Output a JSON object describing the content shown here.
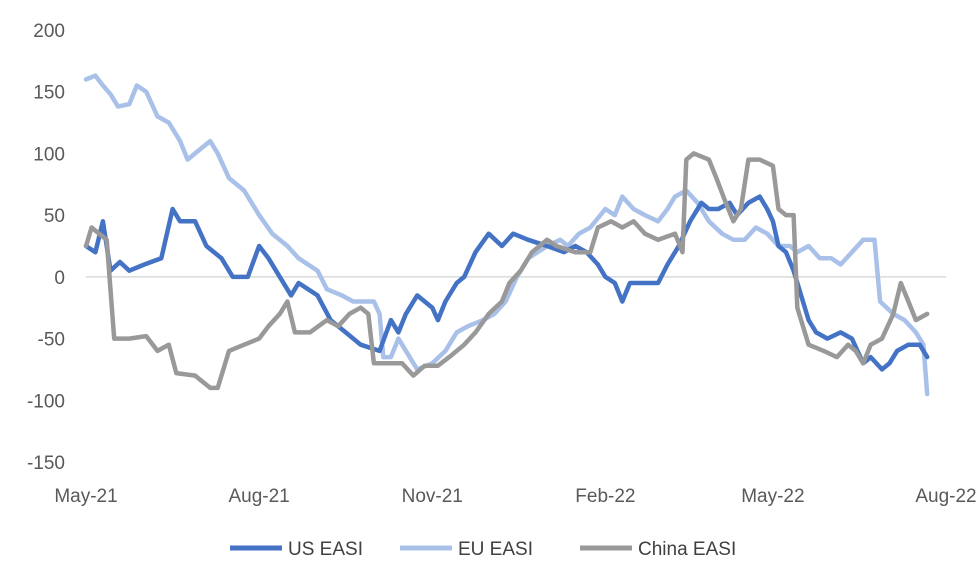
{
  "chart_data": {
    "type": "line",
    "title": "",
    "xlabel": "",
    "ylabel": "",
    "ylim": [
      -150,
      200
    ],
    "y_ticks": [
      200,
      150,
      100,
      50,
      0,
      -50,
      -100,
      -150
    ],
    "y_tick_labels": [
      "200",
      "150",
      "100",
      "50",
      "0",
      "-50",
      "-100",
      "-150"
    ],
    "x_ticks": [
      "2021-05-01",
      "2021-08-01",
      "2021-11-01",
      "2022-02-01",
      "2022-05-01",
      "2022-08-01"
    ],
    "x_tick_labels": [
      "May-21",
      "Aug-21",
      "Nov-21",
      "Feb-22",
      "May-22",
      "Aug-22"
    ],
    "xlim": [
      "2021-05-01",
      "2022-08-01"
    ],
    "grid": false,
    "legend_position": "bottom",
    "series": [
      {
        "name": "US EASI",
        "color": "#4472C4",
        "points": [
          [
            "2021-05-01",
            25
          ],
          [
            "2021-05-06",
            20
          ],
          [
            "2021-05-10",
            45
          ],
          [
            "2021-05-14",
            5
          ],
          [
            "2021-05-19",
            12
          ],
          [
            "2021-05-24",
            5
          ],
          [
            "2021-06-01",
            10
          ],
          [
            "2021-06-10",
            15
          ],
          [
            "2021-06-16",
            55
          ],
          [
            "2021-06-20",
            45
          ],
          [
            "2021-06-28",
            45
          ],
          [
            "2021-07-04",
            25
          ],
          [
            "2021-07-12",
            15
          ],
          [
            "2021-07-18",
            0
          ],
          [
            "2021-07-26",
            0
          ],
          [
            "2021-08-01",
            25
          ],
          [
            "2021-08-06",
            15
          ],
          [
            "2021-08-12",
            0
          ],
          [
            "2021-08-18",
            -15
          ],
          [
            "2021-08-22",
            -5
          ],
          [
            "2021-09-01",
            -15
          ],
          [
            "2021-09-08",
            -35
          ],
          [
            "2021-09-16",
            -45
          ],
          [
            "2021-09-24",
            -55
          ],
          [
            "2021-10-04",
            -60
          ],
          [
            "2021-10-10",
            -35
          ],
          [
            "2021-10-14",
            -45
          ],
          [
            "2021-10-18",
            -30
          ],
          [
            "2021-10-24",
            -15
          ],
          [
            "2021-10-28",
            -20
          ],
          [
            "2021-11-01",
            -25
          ],
          [
            "2021-11-04",
            -35
          ],
          [
            "2021-11-08",
            -20
          ],
          [
            "2021-11-14",
            -5
          ],
          [
            "2021-11-18",
            0
          ],
          [
            "2021-11-24",
            20
          ],
          [
            "2021-12-01",
            35
          ],
          [
            "2021-12-08",
            25
          ],
          [
            "2021-12-14",
            35
          ],
          [
            "2021-12-22",
            30
          ],
          [
            "2022-01-01",
            25
          ],
          [
            "2022-01-10",
            20
          ],
          [
            "2022-01-16",
            25
          ],
          [
            "2022-01-22",
            20
          ],
          [
            "2022-01-28",
            10
          ],
          [
            "2022-02-01",
            0
          ],
          [
            "2022-02-06",
            -5
          ],
          [
            "2022-02-10",
            -20
          ],
          [
            "2022-02-14",
            -5
          ],
          [
            "2022-02-22",
            -5
          ],
          [
            "2022-03-01",
            -5
          ],
          [
            "2022-03-06",
            10
          ],
          [
            "2022-03-12",
            25
          ],
          [
            "2022-03-18",
            45
          ],
          [
            "2022-03-24",
            60
          ],
          [
            "2022-03-28",
            55
          ],
          [
            "2022-04-02",
            55
          ],
          [
            "2022-04-08",
            60
          ],
          [
            "2022-04-12",
            50
          ],
          [
            "2022-04-18",
            60
          ],
          [
            "2022-04-24",
            65
          ],
          [
            "2022-04-28",
            55
          ],
          [
            "2022-05-01",
            45
          ],
          [
            "2022-05-04",
            25
          ],
          [
            "2022-05-08",
            20
          ],
          [
            "2022-05-12",
            5
          ],
          [
            "2022-05-16",
            -15
          ],
          [
            "2022-05-20",
            -35
          ],
          [
            "2022-05-24",
            -45
          ],
          [
            "2022-05-30",
            -50
          ],
          [
            "2022-06-06",
            -45
          ],
          [
            "2022-06-12",
            -50
          ],
          [
            "2022-06-18",
            -70
          ],
          [
            "2022-06-22",
            -65
          ],
          [
            "2022-06-28",
            -75
          ],
          [
            "2022-07-02",
            -70
          ],
          [
            "2022-07-06",
            -60
          ],
          [
            "2022-07-12",
            -55
          ],
          [
            "2022-07-18",
            -55
          ],
          [
            "2022-07-22",
            -65
          ]
        ]
      },
      {
        "name": "EU EASI",
        "color": "#A9C1E8",
        "points": [
          [
            "2021-05-01",
            160
          ],
          [
            "2021-05-06",
            163
          ],
          [
            "2021-05-10",
            155
          ],
          [
            "2021-05-14",
            148
          ],
          [
            "2021-05-18",
            138
          ],
          [
            "2021-05-24",
            140
          ],
          [
            "2021-05-28",
            155
          ],
          [
            "2021-06-02",
            150
          ],
          [
            "2021-06-08",
            130
          ],
          [
            "2021-06-14",
            125
          ],
          [
            "2021-06-20",
            110
          ],
          [
            "2021-06-24",
            95
          ],
          [
            "2021-06-28",
            100
          ],
          [
            "2021-07-06",
            110
          ],
          [
            "2021-07-10",
            100
          ],
          [
            "2021-07-16",
            80
          ],
          [
            "2021-07-24",
            70
          ],
          [
            "2021-08-01",
            50
          ],
          [
            "2021-08-08",
            35
          ],
          [
            "2021-08-16",
            25
          ],
          [
            "2021-08-22",
            15
          ],
          [
            "2021-09-01",
            5
          ],
          [
            "2021-09-06",
            -10
          ],
          [
            "2021-09-14",
            -15
          ],
          [
            "2021-09-20",
            -20
          ],
          [
            "2021-10-01",
            -20
          ],
          [
            "2021-10-04",
            -30
          ],
          [
            "2021-10-06",
            -65
          ],
          [
            "2021-10-10",
            -65
          ],
          [
            "2021-10-14",
            -50
          ],
          [
            "2021-10-18",
            -60
          ],
          [
            "2021-10-24",
            -75
          ],
          [
            "2021-11-01",
            -70
          ],
          [
            "2021-11-08",
            -60
          ],
          [
            "2021-11-14",
            -45
          ],
          [
            "2021-11-20",
            -40
          ],
          [
            "2021-11-28",
            -35
          ],
          [
            "2021-12-04",
            -30
          ],
          [
            "2021-12-10",
            -20
          ],
          [
            "2021-12-16",
            0
          ],
          [
            "2021-12-22",
            15
          ],
          [
            "2022-01-01",
            25
          ],
          [
            "2022-01-08",
            30
          ],
          [
            "2022-01-12",
            25
          ],
          [
            "2022-01-18",
            35
          ],
          [
            "2022-01-24",
            40
          ],
          [
            "2022-02-01",
            55
          ],
          [
            "2022-02-06",
            50
          ],
          [
            "2022-02-10",
            65
          ],
          [
            "2022-02-16",
            55
          ],
          [
            "2022-02-22",
            50
          ],
          [
            "2022-03-01",
            45
          ],
          [
            "2022-03-06",
            55
          ],
          [
            "2022-03-10",
            65
          ],
          [
            "2022-03-16",
            70
          ],
          [
            "2022-03-22",
            60
          ],
          [
            "2022-03-28",
            45
          ],
          [
            "2022-04-04",
            35
          ],
          [
            "2022-04-10",
            30
          ],
          [
            "2022-04-16",
            30
          ],
          [
            "2022-04-22",
            40
          ],
          [
            "2022-04-28",
            35
          ],
          [
            "2022-05-04",
            25
          ],
          [
            "2022-05-10",
            25
          ],
          [
            "2022-05-14",
            20
          ],
          [
            "2022-05-20",
            25
          ],
          [
            "2022-05-26",
            15
          ],
          [
            "2022-06-01",
            15
          ],
          [
            "2022-06-06",
            10
          ],
          [
            "2022-06-12",
            20
          ],
          [
            "2022-06-18",
            30
          ],
          [
            "2022-06-24",
            30
          ],
          [
            "2022-06-27",
            -20
          ],
          [
            "2022-07-04",
            -30
          ],
          [
            "2022-07-10",
            -35
          ],
          [
            "2022-07-16",
            -45
          ],
          [
            "2022-07-20",
            -55
          ],
          [
            "2022-07-22",
            -95
          ]
        ]
      },
      {
        "name": "China EASI",
        "color": "#999999",
        "points": [
          [
            "2021-05-01",
            25
          ],
          [
            "2021-05-04",
            40
          ],
          [
            "2021-05-08",
            35
          ],
          [
            "2021-05-12",
            30
          ],
          [
            "2021-05-16",
            -50
          ],
          [
            "2021-05-24",
            -50
          ],
          [
            "2021-06-02",
            -48
          ],
          [
            "2021-06-08",
            -60
          ],
          [
            "2021-06-14",
            -55
          ],
          [
            "2021-06-18",
            -78
          ],
          [
            "2021-06-28",
            -80
          ],
          [
            "2021-07-06",
            -90
          ],
          [
            "2021-07-10",
            -90
          ],
          [
            "2021-07-16",
            -60
          ],
          [
            "2021-07-24",
            -55
          ],
          [
            "2021-08-01",
            -50
          ],
          [
            "2021-08-06",
            -40
          ],
          [
            "2021-08-12",
            -30
          ],
          [
            "2021-08-16",
            -20
          ],
          [
            "2021-08-20",
            -45
          ],
          [
            "2021-08-28",
            -45
          ],
          [
            "2021-09-06",
            -35
          ],
          [
            "2021-09-12",
            -40
          ],
          [
            "2021-09-18",
            -30
          ],
          [
            "2021-09-24",
            -25
          ],
          [
            "2021-09-28",
            -30
          ],
          [
            "2021-10-01",
            -70
          ],
          [
            "2021-10-08",
            -70
          ],
          [
            "2021-10-16",
            -70
          ],
          [
            "2021-10-22",
            -80
          ],
          [
            "2021-10-28",
            -72
          ],
          [
            "2021-11-04",
            -72
          ],
          [
            "2021-11-10",
            -65
          ],
          [
            "2021-11-18",
            -55
          ],
          [
            "2021-11-24",
            -45
          ],
          [
            "2021-12-01",
            -30
          ],
          [
            "2021-12-08",
            -20
          ],
          [
            "2021-12-12",
            -5
          ],
          [
            "2021-12-18",
            5
          ],
          [
            "2021-12-24",
            20
          ],
          [
            "2022-01-01",
            30
          ],
          [
            "2022-01-06",
            25
          ],
          [
            "2022-01-16",
            20
          ],
          [
            "2022-01-24",
            20
          ],
          [
            "2022-01-28",
            40
          ],
          [
            "2022-02-04",
            45
          ],
          [
            "2022-02-10",
            40
          ],
          [
            "2022-02-16",
            45
          ],
          [
            "2022-02-22",
            35
          ],
          [
            "2022-03-01",
            30
          ],
          [
            "2022-03-10",
            35
          ],
          [
            "2022-03-14",
            20
          ],
          [
            "2022-03-16",
            95
          ],
          [
            "2022-03-20",
            100
          ],
          [
            "2022-03-28",
            95
          ],
          [
            "2022-04-01",
            80
          ],
          [
            "2022-04-06",
            60
          ],
          [
            "2022-04-10",
            45
          ],
          [
            "2022-04-14",
            55
          ],
          [
            "2022-04-18",
            95
          ],
          [
            "2022-04-24",
            95
          ],
          [
            "2022-05-01",
            90
          ],
          [
            "2022-05-04",
            55
          ],
          [
            "2022-05-08",
            50
          ],
          [
            "2022-05-12",
            50
          ],
          [
            "2022-05-14",
            -25
          ],
          [
            "2022-05-20",
            -55
          ],
          [
            "2022-05-28",
            -60
          ],
          [
            "2022-06-04",
            -65
          ],
          [
            "2022-06-10",
            -55
          ],
          [
            "2022-06-14",
            -60
          ],
          [
            "2022-06-18",
            -70
          ],
          [
            "2022-06-22",
            -55
          ],
          [
            "2022-06-28",
            -50
          ],
          [
            "2022-07-04",
            -30
          ],
          [
            "2022-07-08",
            -5
          ],
          [
            "2022-07-12",
            -20
          ],
          [
            "2022-07-16",
            -35
          ],
          [
            "2022-07-22",
            -30
          ]
        ]
      }
    ]
  }
}
